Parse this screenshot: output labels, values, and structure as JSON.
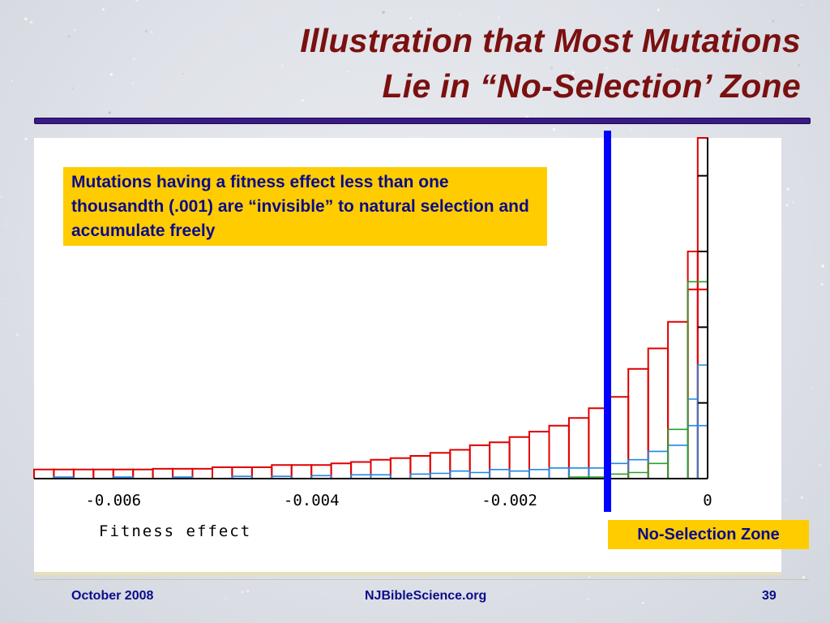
{
  "slide": {
    "title_line1": "Illustration that Most Mutations",
    "title_line2": "Lie in “No-Selection’ Zone",
    "callout_text": "Mutations having a fitness effect less than one thousandth (.001) are “invisible” to natural selection and accumulate freely",
    "zone_label": "No-Selection Zone",
    "footer_left": "October 2008",
    "footer_center": "NJBibleScience.org",
    "footer_right": "39"
  },
  "colors": {
    "title": "#7a1010",
    "rule": "#3b1a86",
    "callout_bg": "#ffcc00",
    "callout_text": "#0b0b8a",
    "series_red": "#e00000",
    "series_blue": "#1e88e5",
    "series_green": "#2aa02a",
    "threshold_line": "#0000ff"
  },
  "chart_data": {
    "type": "histogram",
    "xlabel": "Fitness effect",
    "ylabel": "",
    "xlim": [
      -0.0068,
      0.0
    ],
    "tick_labels": [
      "-0.006",
      "-0.004",
      "-0.002",
      "0"
    ],
    "tick_values": [
      -0.006,
      -0.004,
      -0.002,
      0
    ],
    "bin_width": 0.0002,
    "y_range": [
      0,
      4.5
    ],
    "y_ticks": [
      1,
      2,
      3,
      4
    ],
    "threshold": -0.001,
    "series": [
      {
        "color": "red",
        "bins": [
          [
            -0.0068,
            0.12
          ],
          [
            -0.0066,
            0.12
          ],
          [
            -0.0064,
            0.12
          ],
          [
            -0.0062,
            0.12
          ],
          [
            -0.006,
            0.12
          ],
          [
            -0.0058,
            0.12
          ],
          [
            -0.0056,
            0.13
          ],
          [
            -0.0054,
            0.13
          ],
          [
            -0.0052,
            0.13
          ],
          [
            -0.005,
            0.15
          ],
          [
            -0.0048,
            0.15
          ],
          [
            -0.0046,
            0.15
          ],
          [
            -0.0044,
            0.18
          ],
          [
            -0.0042,
            0.18
          ],
          [
            -0.004,
            0.18
          ],
          [
            -0.0038,
            0.2
          ],
          [
            -0.0036,
            0.22
          ],
          [
            -0.0034,
            0.25
          ],
          [
            -0.0032,
            0.27
          ],
          [
            -0.003,
            0.3
          ],
          [
            -0.0028,
            0.34
          ],
          [
            -0.0026,
            0.38
          ],
          [
            -0.0024,
            0.44
          ],
          [
            -0.0022,
            0.48
          ],
          [
            -0.002,
            0.55
          ],
          [
            -0.0018,
            0.62
          ],
          [
            -0.0016,
            0.7
          ],
          [
            -0.0014,
            0.8
          ],
          [
            -0.0012,
            0.93
          ],
          [
            -0.001,
            1.08
          ],
          [
            -0.0008,
            1.45
          ],
          [
            -0.0006,
            1.72
          ],
          [
            -0.0004,
            2.07
          ],
          [
            -0.0002,
            2.5
          ],
          [
            -0.0001,
            3.0
          ],
          [
            0.0,
            4.6
          ]
        ]
      },
      {
        "color": "blue",
        "bins": [
          [
            -0.0066,
            0.02
          ],
          [
            -0.006,
            0.02
          ],
          [
            -0.0054,
            0.02
          ],
          [
            -0.0048,
            0.03
          ],
          [
            -0.0044,
            0.03
          ],
          [
            -0.004,
            0.04
          ],
          [
            -0.0036,
            0.05
          ],
          [
            -0.0034,
            0.05
          ],
          [
            -0.003,
            0.06
          ],
          [
            -0.0028,
            0.07
          ],
          [
            -0.0026,
            0.1
          ],
          [
            -0.0024,
            0.08
          ],
          [
            -0.0022,
            0.12
          ],
          [
            -0.002,
            0.1
          ],
          [
            -0.0018,
            0.12
          ],
          [
            -0.0016,
            0.14
          ],
          [
            -0.0014,
            0.14
          ],
          [
            -0.0012,
            0.14
          ],
          [
            -0.001,
            0.2
          ],
          [
            -0.0008,
            0.25
          ],
          [
            -0.0006,
            0.36
          ],
          [
            -0.0004,
            0.44
          ],
          [
            -0.0002,
            0.7
          ],
          [
            -0.0001,
            1.05
          ],
          [
            0.0,
            1.5
          ]
        ]
      },
      {
        "color": "green",
        "bins": [
          [
            -0.0014,
            0.02
          ],
          [
            -0.0012,
            0.02
          ],
          [
            -0.001,
            0.06
          ],
          [
            -0.0008,
            0.08
          ],
          [
            -0.0006,
            0.2
          ],
          [
            -0.0004,
            0.65
          ],
          [
            -0.0002,
            2.6
          ]
        ]
      }
    ]
  }
}
